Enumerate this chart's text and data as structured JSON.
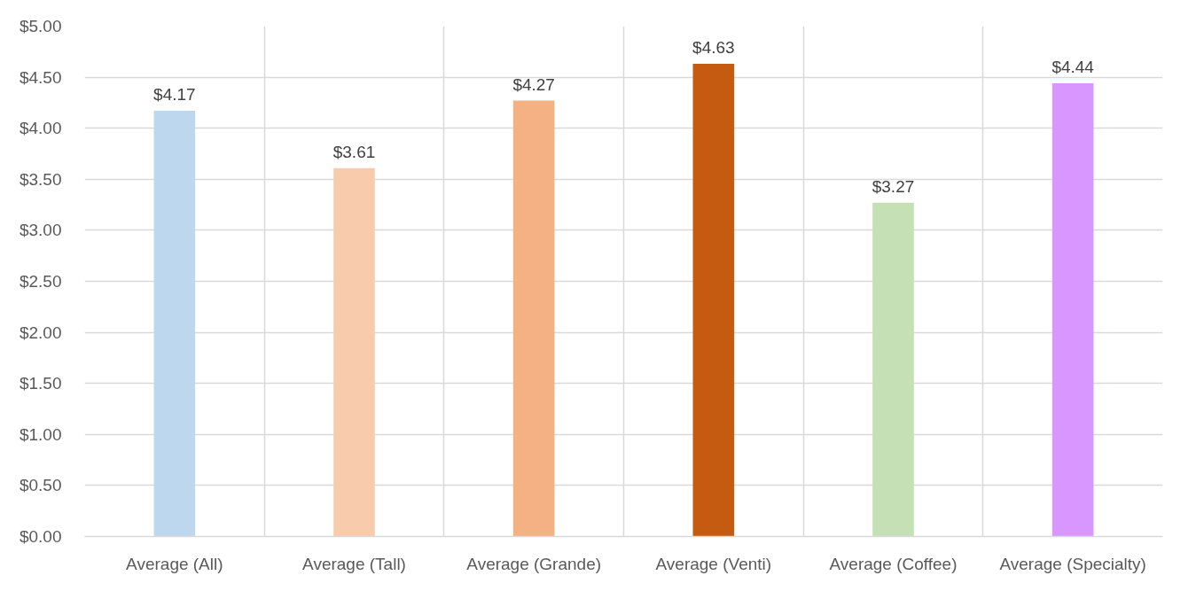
{
  "chart_data": {
    "type": "bar",
    "categories": [
      "Average (All)",
      "Average (Tall)",
      "Average (Grande)",
      "Average (Venti)",
      "Average (Coffee)",
      "Average (Specialty)"
    ],
    "values": [
      4.17,
      3.61,
      4.27,
      4.63,
      3.27,
      4.44
    ],
    "colors": [
      "#bdd7ee",
      "#f8cbad",
      "#f4b183",
      "#c55a11",
      "#c5e0b4",
      "#d896ff"
    ],
    "value_labels": [
      "$4.17",
      "$3.61",
      "$4.27",
      "$4.63",
      "$3.27",
      "$4.44"
    ],
    "ylim": [
      0,
      5
    ],
    "yticks": [
      {
        "value": 0,
        "label": "$0.00"
      },
      {
        "value": 0.5,
        "label": "$0.50"
      },
      {
        "value": 1,
        "label": "$1.00"
      },
      {
        "value": 1.5,
        "label": "$1.50"
      },
      {
        "value": 2,
        "label": "$2.00"
      },
      {
        "value": 2.5,
        "label": "$2.50"
      },
      {
        "value": 3,
        "label": "$3.00"
      },
      {
        "value": 3.5,
        "label": "$3.50"
      },
      {
        "value": 4,
        "label": "$4.00"
      },
      {
        "value": 4.5,
        "label": "$4.50"
      },
      {
        "value": 5,
        "label": "$5.00"
      }
    ],
    "grid": true
  }
}
